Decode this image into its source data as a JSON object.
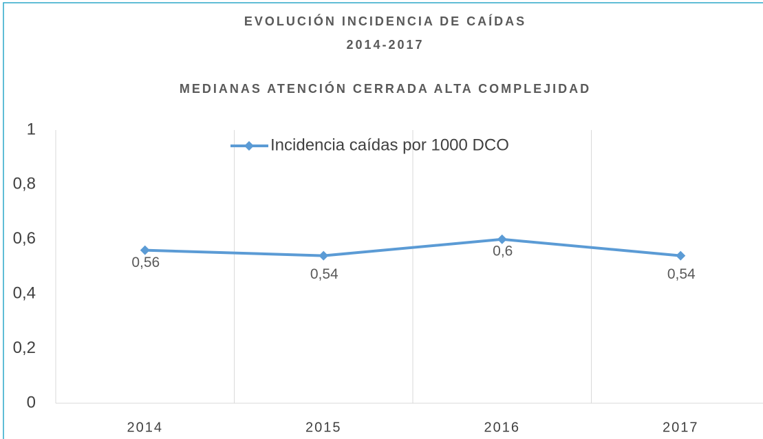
{
  "chart_data": {
    "type": "line",
    "title": [
      "EVOLUCIÓN INCIDENCIA DE CAÍDAS",
      "2014-2017"
    ],
    "subtitle": "MEDIANAS ATENCIÓN CERRADA ALTA COMPLEJIDAD",
    "categories": [
      "2014",
      "2015",
      "2016",
      "2017"
    ],
    "series": [
      {
        "name": "Incidencia caídas por 1000 DCO",
        "color": "#5b9bd5",
        "values": [
          0.56,
          0.54,
          0.6,
          0.54
        ],
        "value_labels": [
          "0,56",
          "0,54",
          "0,6",
          "0,54"
        ]
      }
    ],
    "ylim": [
      0,
      1
    ],
    "yticks": [
      0,
      {
        "value": 0.2,
        "label": "0,2"
      },
      {
        "value": 0.4,
        "label": "0,4"
      },
      {
        "value": 0.6,
        "label": "0,6"
      },
      {
        "value": 0.8,
        "label": "0,8"
      },
      1
    ],
    "grid": false,
    "legend": "top"
  }
}
